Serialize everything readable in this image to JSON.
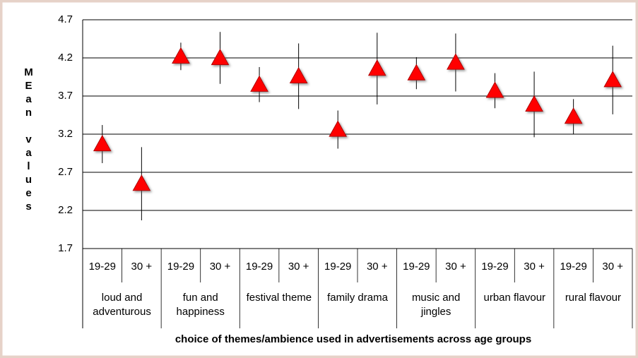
{
  "chart_data": {
    "type": "errorbar",
    "y_label": "MEan values",
    "x_label": "choice of themes/ambience used in advertisements across age groups",
    "categories": [
      "19-29",
      "30 +",
      "19-29",
      "30 +",
      "19-29",
      "30 +",
      "19-29",
      "30 +",
      "19-29",
      "30 +",
      "19-29",
      "30 +",
      "19-29",
      "30 +"
    ],
    "groups": [
      "loud and adventurous",
      "fun and happiness",
      "festival theme",
      "family drama",
      "music and jingles",
      "urban flavour",
      "rural flavour"
    ],
    "values": [
      3.07,
      2.55,
      4.22,
      4.2,
      3.85,
      3.96,
      3.26,
      4.06,
      4.0,
      4.14,
      3.77,
      3.59,
      3.43,
      3.91
    ],
    "errors": [
      0.25,
      0.48,
      0.18,
      0.34,
      0.23,
      0.43,
      0.25,
      0.47,
      0.21,
      0.38,
      0.23,
      0.43,
      0.23,
      0.45
    ],
    "color": "#ff0000",
    "ylim": [
      1.7,
      4.7
    ],
    "yticks": [
      1.7,
      2.2,
      2.7,
      3.2,
      3.7,
      4.2,
      4.7
    ],
    "grid": true
  }
}
